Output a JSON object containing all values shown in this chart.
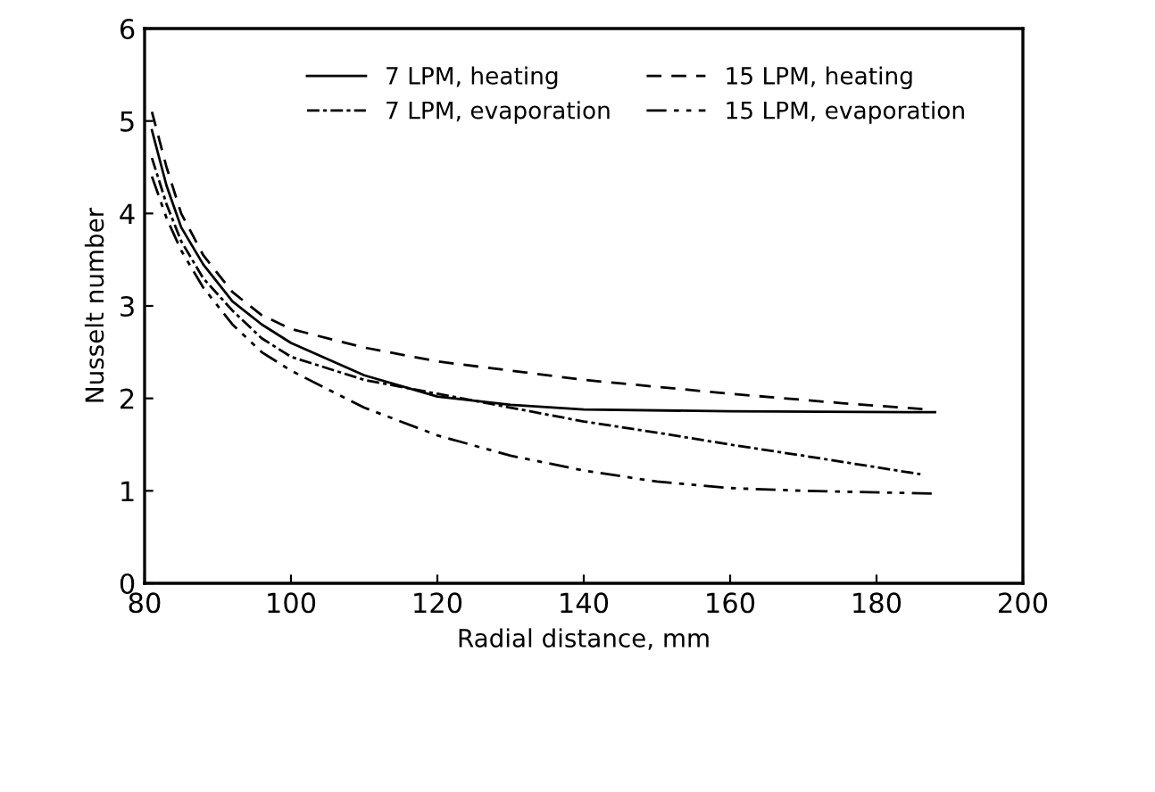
{
  "chart_data": {
    "type": "line",
    "xlabel": "Radial distance, mm",
    "ylabel": "Nusselt number",
    "xlim": [
      80,
      200
    ],
    "xticks": [
      80,
      100,
      120,
      140,
      160,
      180,
      200
    ],
    "ylim": [
      0,
      6
    ],
    "yticks": [
      0,
      1,
      2,
      3,
      4,
      5,
      6
    ],
    "grid": false,
    "legend": "top",
    "marker": "none",
    "series": [
      {
        "name": "7 LPM, heating",
        "color": "#000000",
        "line_style": "solid",
        "x": [
          81,
          83,
          85,
          88,
          92,
          96,
          100,
          110,
          120,
          130,
          140,
          160,
          188
        ],
        "values": [
          4.9,
          4.3,
          3.85,
          3.45,
          3.05,
          2.8,
          2.6,
          2.25,
          2.02,
          1.93,
          1.88,
          1.86,
          1.85
        ]
      },
      {
        "name": "7 LPM, evaporation",
        "color": "#000000",
        "line_style": "dashdot",
        "x": [
          81,
          83,
          85,
          88,
          92,
          96,
          100,
          110,
          120,
          130,
          140,
          150,
          160,
          170,
          186
        ],
        "values": [
          4.6,
          4.1,
          3.7,
          3.3,
          2.95,
          2.65,
          2.45,
          2.2,
          2.05,
          1.9,
          1.75,
          1.63,
          1.5,
          1.38,
          1.18
        ]
      },
      {
        "name": "15 LPM, heating",
        "color": "#000000",
        "line_style": "dashed",
        "x": [
          81,
          83,
          85,
          88,
          92,
          96,
          100,
          110,
          120,
          130,
          140,
          160,
          175,
          187
        ],
        "values": [
          5.1,
          4.5,
          4.0,
          3.55,
          3.15,
          2.9,
          2.75,
          2.55,
          2.4,
          2.3,
          2.2,
          2.05,
          1.95,
          1.88
        ]
      },
      {
        "name": "15 LPM, evaporation",
        "color": "#000000",
        "line_style": "dashdotdot",
        "x": [
          81,
          83,
          85,
          88,
          92,
          96,
          100,
          110,
          120,
          130,
          140,
          150,
          160,
          170,
          188
        ],
        "values": [
          4.4,
          3.95,
          3.6,
          3.2,
          2.8,
          2.5,
          2.3,
          1.9,
          1.6,
          1.38,
          1.22,
          1.1,
          1.03,
          1.0,
          0.97
        ]
      }
    ]
  }
}
